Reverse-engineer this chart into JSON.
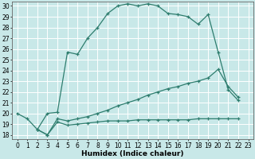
{
  "xlabel": "Humidex (Indice chaleur)",
  "background_color": "#c8e8e8",
  "grid_color": "#ffffff",
  "line_color": "#2e7d6e",
  "xlim": [
    -0.5,
    23.5
  ],
  "ylim": [
    17.6,
    30.4
  ],
  "xticks": [
    0,
    1,
    2,
    3,
    4,
    5,
    6,
    7,
    8,
    9,
    10,
    11,
    12,
    13,
    14,
    15,
    16,
    17,
    18,
    19,
    20,
    21,
    22,
    23
  ],
  "yticks": [
    18,
    19,
    20,
    21,
    22,
    23,
    24,
    25,
    26,
    27,
    28,
    29,
    30
  ],
  "line1_x": [
    0,
    1,
    2,
    3,
    4,
    5,
    6,
    7,
    8,
    9,
    10,
    11,
    12,
    13,
    14,
    15,
    16,
    17,
    18,
    19,
    20,
    21,
    22
  ],
  "line1_y": [
    20,
    19.5,
    18.5,
    20.0,
    20.1,
    25.7,
    25.5,
    27.0,
    28.0,
    29.3,
    30.0,
    30.2,
    30.0,
    30.2,
    30.0,
    29.3,
    29.2,
    29.0,
    28.3,
    29.2,
    25.7,
    22.2,
    21.2
  ],
  "line2_x": [
    2,
    3,
    4,
    5,
    6,
    7,
    8,
    9,
    10,
    11,
    12,
    13,
    14,
    15,
    16,
    17,
    18,
    19,
    20,
    21,
    22
  ],
  "line2_y": [
    18.5,
    18.0,
    19.5,
    19.3,
    19.5,
    19.7,
    20.0,
    20.3,
    20.7,
    21.0,
    21.3,
    21.7,
    22.0,
    22.3,
    22.5,
    22.8,
    23.0,
    23.3,
    24.1,
    22.5,
    21.5
  ],
  "line3_x": [
    2,
    3,
    4,
    5,
    6,
    7,
    8,
    9,
    10,
    11,
    12,
    13,
    14,
    15,
    16,
    17,
    18,
    19,
    20,
    21,
    22
  ],
  "line3_y": [
    18.5,
    18.0,
    19.2,
    18.9,
    19.0,
    19.1,
    19.2,
    19.3,
    19.3,
    19.3,
    19.4,
    19.4,
    19.4,
    19.4,
    19.4,
    19.4,
    19.5,
    19.5,
    19.5,
    19.5,
    19.5
  ],
  "tick_fontsize": 5.5,
  "xlabel_fontsize": 6.5,
  "linewidth": 0.9,
  "markersize": 3.5,
  "markeredgewidth": 0.9
}
